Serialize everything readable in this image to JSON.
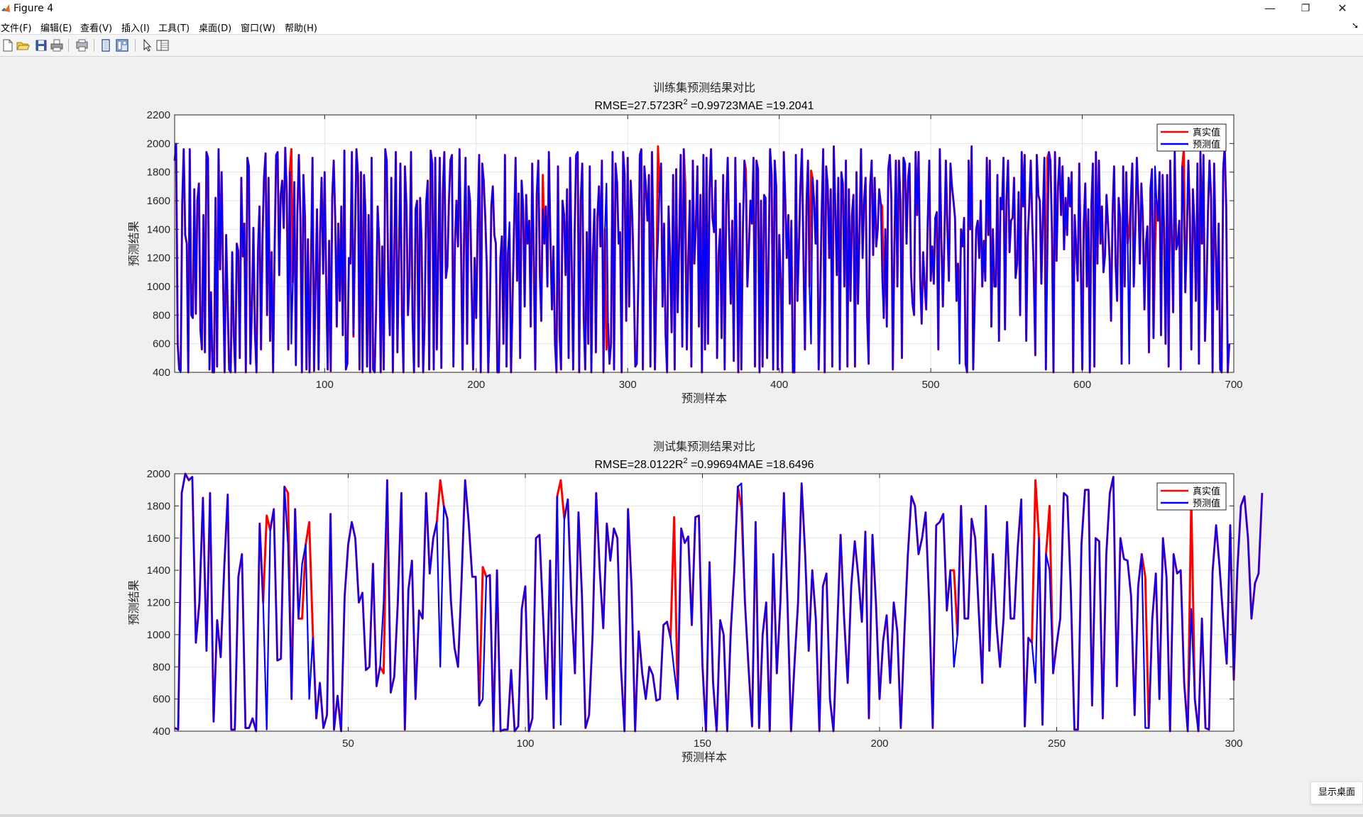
{
  "window": {
    "title": "Figure 4",
    "minimize_glyph": "—",
    "restore_glyph": "❐",
    "close_glyph": "✕"
  },
  "menu": [
    "文件(F)",
    "编辑(E)",
    "查看(V)",
    "插入(I)",
    "工具(T)",
    "桌面(D)",
    "窗口(W)",
    "帮助(H)"
  ],
  "toolbar_icons": [
    "new-figure-icon",
    "open-file-icon",
    "save-icon",
    "print-icon",
    "print-preview-icon",
    "hide-plot-tools-icon",
    "show-plot-tools-icon",
    "pointer-icon",
    "property-inspector-icon"
  ],
  "colors": {
    "true_series": "#ff0000",
    "pred_series": "#0000ff"
  },
  "taskbar": {
    "show_desktop": "显示桌面"
  },
  "chart_data": [
    {
      "type": "line",
      "title": "训练集预测结果对比",
      "subtitle": {
        "rmse": "RMSE=27.5723",
        "r_label": "R",
        "r_sup": "2",
        "rest": " =0.99723MAE =19.2041"
      },
      "xlabel": "预测样本",
      "ylabel": "预测结果",
      "xlim": [
        1,
        700
      ],
      "ylim": [
        400,
        2200
      ],
      "xticks": [
        100,
        200,
        300,
        400,
        500,
        600,
        700
      ],
      "yticks": [
        400,
        600,
        800,
        1000,
        1200,
        1400,
        1600,
        1800,
        2000,
        2200
      ],
      "grid": true,
      "legend": "top-right",
      "series": [
        {
          "name": "真实值",
          "color": "#ff0000"
        },
        {
          "name": "预测值",
          "color": "#0000ff"
        }
      ],
      "x_step": 1,
      "pred": [
        1880,
        2000,
        600,
        420,
        400,
        1580,
        1960,
        1360,
        1300,
        400,
        1960,
        800,
        780,
        1680,
        810,
        1600,
        1720,
        700,
        560,
        1500,
        540,
        1940,
        1900,
        420,
        960,
        400,
        400,
        1620,
        440,
        1960,
        1120,
        1800,
        1050,
        400,
        1360,
        860,
        420,
        400,
        1240,
        680,
        400,
        1300,
        1250,
        500,
        1760,
        1210,
        1440,
        400,
        1900,
        1840,
        460,
        860,
        1410,
        680,
        400,
        1250,
        1560,
        560,
        1340,
        1760,
        1930,
        800,
        1760,
        620,
        1240,
        400,
        1280,
        1920,
        1940,
        1080,
        1640,
        1740,
        1410,
        1970,
        1650,
        560,
        1800,
        600,
        1030,
        1730,
        450,
        1520,
        1920,
        1480,
        400,
        1780,
        1490,
        420,
        1330,
        400,
        1160,
        1900,
        410,
        1020,
        1540,
        420,
        1370,
        1760,
        1090,
        1800,
        1080,
        420,
        1320,
        410,
        1620,
        1880,
        1460,
        720,
        1440,
        900,
        1560,
        660,
        1950,
        420,
        460,
        1200,
        1160,
        1940,
        660,
        1340,
        1960,
        1780,
        420,
        1800,
        400,
        1780,
        1500,
        440,
        1500,
        400,
        1900,
        420,
        400,
        860,
        1560,
        1300,
        400,
        1280,
        420,
        1960,
        1880,
        1020,
        660,
        1760,
        400,
        1260,
        1940,
        540,
        1200,
        1860,
        820,
        400,
        1840,
        1560,
        800,
        1060,
        1940,
        780,
        400,
        1540,
        1600,
        440,
        1620,
        1300,
        400,
        760,
        1580,
        1740,
        420,
        1950,
        1860,
        420,
        1900,
        560,
        1240,
        1900,
        430,
        1660,
        1940,
        1060,
        1140,
        1580,
        1880,
        1920,
        440,
        1300,
        1600,
        1280,
        1960,
        1300,
        420,
        1340,
        1900,
        600,
        1700,
        1600,
        1000,
        420,
        1200,
        780,
        1440,
        1920,
        400,
        1860,
        1740,
        1480,
        1140,
        400,
        800,
        1560,
        1700,
        1360,
        1300,
        400,
        400,
        1200,
        1350,
        600,
        1920,
        440,
        1240,
        1450,
        400,
        900,
        1400,
        1900,
        1040,
        1650,
        500,
        1740,
        1560,
        860,
        1640,
        1300,
        1460,
        720,
        1860,
        1200,
        420,
        1640,
        1880,
        1100,
        760,
        1540,
        1300,
        1560,
        1000,
        1940,
        1320,
        840,
        1280,
        600,
        400,
        1840,
        680,
        420,
        1600,
        1500,
        1080,
        1680,
        500,
        1900,
        1200,
        420,
        1380,
        1920,
        1940,
        400,
        1600,
        1860,
        780,
        420,
        1380,
        600,
        1840,
        400,
        1220,
        1540,
        540,
        1480,
        1700,
        1280,
        1880,
        400,
        1400,
        1720,
        740,
        460,
        600,
        1940,
        420,
        1860,
        1720,
        1300,
        1380,
        400,
        1940,
        1780,
        760,
        1900,
        860,
        1740,
        1500,
        1080,
        440,
        460,
        1040,
        1920,
        1960,
        420,
        1840,
        1700,
        1460,
        1780,
        440,
        1940,
        1280,
        420,
        1100,
        1320,
        1660,
        1860,
        860,
        1440,
        660,
        400,
        1560,
        1200,
        680,
        1780,
        420,
        1820,
        820,
        1340,
        1920,
        580,
        1960,
        1360,
        560,
        1200,
        1600,
        440,
        1880,
        1160,
        1440,
        1840,
        720,
        1640,
        400,
        1920,
        560,
        1900,
        600,
        1680,
        1960,
        1480,
        1380,
        1740,
        500,
        1220,
        1400,
        640,
        1780,
        420,
        1560,
        1900,
        1340,
        880,
        1460,
        480,
        1900,
        1240,
        400,
        1580,
        420,
        1380,
        1880,
        1660,
        1000,
        1280,
        1600,
        1440,
        1900,
        440,
        1880,
        1820,
        400,
        1600,
        440,
        1640,
        1620,
        500,
        1200,
        1960,
        1780,
        420,
        1880,
        1700,
        420,
        1360,
        1040,
        400,
        1940,
        1600,
        1200,
        1500,
        880,
        1460,
        400,
        400,
        1920,
        900,
        1280,
        1700,
        1960,
        1200,
        560,
        1580,
        1880,
        1000,
        600,
        1760,
        1600,
        1300,
        1740,
        420,
        880,
        1500,
        1960,
        400,
        1840,
        1700,
        1200,
        1680,
        440,
        1980,
        1560,
        1080,
        1760,
        420,
        1800,
        1720,
        1000,
        1880,
        440,
        1680,
        900,
        1500,
        1640,
        440,
        1800,
        880,
        1400,
        1960,
        1200,
        1600,
        1760,
        800,
        460,
        1700,
        1880,
        1220,
        1760,
        1280,
        1400,
        1680,
        1580,
        1040,
        780,
        1400,
        720,
        1820,
        1920,
        1620,
        420,
        1280,
        1880,
        1000,
        1880,
        1600,
        500,
        1900,
        1860,
        1300,
        1740,
        1860,
        1080,
        880,
        800,
        1940,
        1500,
        1940,
        1060,
        740,
        1240,
        1000,
        840,
        1440,
        1880,
        1040,
        1280,
        1020,
        1480,
        1520,
        560,
        1960,
        1340,
        860,
        1320,
        1880,
        1400,
        1040,
        1860,
        1700,
        1600,
        1480,
        900,
        1160,
        460,
        1400,
        1280,
        1480,
        460,
        400,
        1880,
        1400,
        1980,
        420,
        880,
        1400,
        1460,
        1200,
        1600,
        1000,
        1320,
        1040,
        1900,
        1360,
        1880,
        720,
        1400,
        1000,
        1000,
        1780,
        620,
        1620,
        1540,
        1900,
        700,
        1600,
        1880,
        1240,
        1460,
        1480,
        1760,
        1060,
        1160,
        1660,
        800,
        1940,
        1560,
        1920,
        620,
        1340,
        1560,
        1880,
        1460,
        1100,
        520,
        1920,
        1640,
        1600,
        1020,
        1500,
        1900,
        420,
        1200,
        1940,
        1880,
        1380,
        400,
        1940,
        1180,
        1700,
        1900,
        1500,
        1840,
        1260,
        1620,
        1360,
        1760,
        1560,
        1800,
        400,
        1500,
        1260,
        1040,
        1860,
        1200,
        420,
        1440,
        1720,
        1000,
        1540,
        400,
        1560,
        1860,
        440,
        1940,
        1160,
        1880,
        1300,
        1560,
        1100,
        1220,
        1640,
        1440,
        1200,
        760,
        1500,
        1840,
        1160,
        900,
        1620,
        1480,
        460,
        1840,
        1000,
        1800,
        1300,
        460,
        1600,
        1860,
        1000,
        1400,
        1900,
        1620,
        1160,
        1720,
        1480,
        840,
        1300,
        1420,
        540,
        1680,
        1820,
        640,
        1840,
        1600,
        1460,
        1800,
        660,
        1780,
        1400,
        600,
        1780,
        440,
        1880,
        1360,
        820,
        1940,
        1260,
        1300,
        1460,
        420,
        1840,
        1540,
        960,
        1340,
        1880,
        1500,
        560,
        1680,
        1420,
        900,
        1860,
        460,
        1940,
        1300,
        1920,
        620,
        1000,
        1540,
        1880,
        1620,
        400,
        1860,
        1280,
        840,
        1440,
        420,
        400,
        1820,
        1980,
        1560,
        400,
        600
      ],
      "actual_diff": [
        [
          2,
          1990
        ],
        [
          5,
          415
        ],
        [
          78,
          1960
        ],
        [
          119,
          650
        ],
        [
          222,
          1360
        ],
        [
          244,
          1780
        ],
        [
          286,
          560
        ],
        [
          320,
          1980
        ],
        [
          338,
          1720
        ],
        [
          378,
          1820
        ],
        [
          421,
          1810
        ],
        [
          468,
          1560
        ],
        [
          519,
          800
        ],
        [
          577,
          1900
        ],
        [
          631,
          1380
        ],
        [
          648,
          1240
        ],
        [
          667,
          1960
        ],
        [
          700,
          600
        ]
      ]
    },
    {
      "type": "line",
      "title": "测试集预测结果对比",
      "subtitle": {
        "rmse": "RMSE=28.0122",
        "r_label": "R",
        "r_sup": "2",
        "rest": " =0.99694MAE =18.6496"
      },
      "xlabel": "预测样本",
      "ylabel": "预测结果",
      "xlim": [
        1,
        300
      ],
      "ylim": [
        400,
        2000
      ],
      "xticks": [
        50,
        100,
        150,
        200,
        250,
        300
      ],
      "yticks": [
        400,
        600,
        800,
        1000,
        1200,
        1400,
        1600,
        1800,
        2000
      ],
      "grid": true,
      "legend": "top-right",
      "series": [
        {
          "name": "真实值",
          "color": "#ff0000"
        },
        {
          "name": "预测值",
          "color": "#0000ff"
        }
      ],
      "x_step": 1,
      "pred": [
        420,
        410,
        1880,
        2000,
        1960,
        1980,
        950,
        1200,
        1850,
        900,
        1880,
        460,
        1090,
        860,
        1420,
        1870,
        410,
        410,
        1360,
        1500,
        420,
        420,
        480,
        400,
        1690,
        1200,
        410,
        1650,
        1780,
        840,
        850,
        1920,
        1560,
        600,
        1780,
        1100,
        1440,
        1560,
        600,
        980,
        480,
        700,
        420,
        500,
        1750,
        410,
        620,
        400,
        1240,
        1560,
        1700,
        1600,
        1200,
        1260,
        780,
        800,
        1440,
        680,
        800,
        1200,
        1960,
        640,
        740,
        1200,
        1880,
        410,
        1280,
        1460,
        600,
        1150,
        1100,
        1880,
        1380,
        1600,
        1700,
        800,
        1800,
        1720,
        1210,
        920,
        800,
        1340,
        1960,
        1700,
        1360,
        1360,
        560,
        600,
        1360,
        1370,
        400,
        1400,
        400,
        410,
        410,
        780,
        400,
        430,
        1160,
        1300,
        400,
        480,
        1600,
        1620,
        1120,
        600,
        1460,
        420,
        1860,
        440,
        1720,
        1840,
        1200,
        760,
        1760,
        1240,
        420,
        500,
        1000,
        1880,
        1400,
        1040,
        1690,
        1460,
        1660,
        1600,
        800,
        400,
        1780,
        1290,
        400,
        1020,
        760,
        600,
        800,
        750,
        590,
        600,
        1060,
        1080,
        980,
        780,
        600,
        1660,
        1570,
        1610,
        1060,
        1730,
        1740,
        810,
        400,
        1450,
        700,
        400,
        1090,
        1000,
        400,
        1000,
        1400,
        1920,
        1940,
        1200,
        800,
        430,
        1700,
        420,
        1000,
        1200,
        400,
        1500,
        760,
        1200,
        1880,
        1200,
        400,
        820,
        1200,
        1940,
        1500,
        900,
        1400,
        1100,
        400,
        1300,
        1380,
        600,
        400,
        1000,
        1620,
        1100,
        700,
        1300,
        1580,
        1360,
        1080,
        1640,
        480,
        1620,
        1190,
        600,
        960,
        1120,
        700,
        1200,
        1020,
        420,
        1000,
        1500,
        1860,
        1800,
        1500,
        1600,
        1760,
        1200,
        420,
        1680,
        1700,
        1750,
        1150,
        1400,
        800,
        1000,
        1800,
        1100,
        1100,
        1720,
        1600,
        1150,
        700,
        1800,
        900,
        1500,
        1060,
        800,
        1100,
        1700,
        1100,
        1100,
        1540,
        1840,
        430,
        980,
        950,
        700,
        1600,
        440,
        1500,
        1400,
        760,
        940,
        1100,
        1880,
        1860,
        1260,
        410,
        410,
        1560,
        1900,
        1900,
        560,
        1600,
        1580,
        480,
        1500,
        1880,
        1980,
        680,
        1600,
        1470,
        1460,
        1240,
        500,
        1300,
        1500,
        420,
        420,
        1100,
        1380,
        600,
        1600,
        1360,
        400,
        1500,
        1380,
        1400,
        700,
        400,
        1160,
        600,
        400,
        1100,
        420,
        410,
        1390,
        1680,
        1420,
        1100,
        820,
        1680,
        720,
        1400,
        1800,
        1860,
        1600,
        1100,
        1320,
        1380,
        1880
      ],
      "actual_diff": [
        [
          27,
          1740
        ],
        [
          33,
          1880
        ],
        [
          37,
          1100
        ],
        [
          39,
          1700
        ],
        [
          40,
          1020
        ],
        [
          60,
          760
        ],
        [
          76,
          1960
        ],
        [
          88,
          1420
        ],
        [
          110,
          1960
        ],
        [
          142,
          1730
        ],
        [
          158,
          1030
        ],
        [
          161,
          1790
        ],
        [
          221,
          1400
        ],
        [
          244,
          1960
        ],
        [
          248,
          1800
        ],
        [
          275,
          1360
        ],
        [
          288,
          1850
        ]
      ]
    }
  ]
}
